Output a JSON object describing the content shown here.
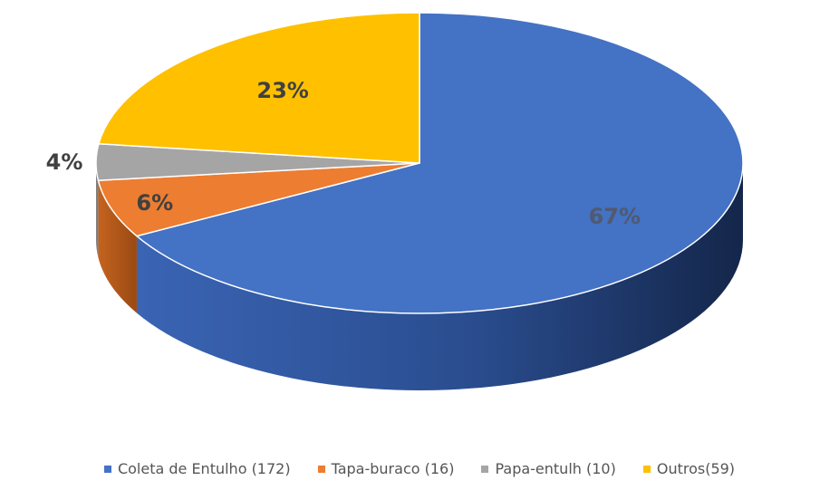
{
  "chart_data": {
    "type": "pie",
    "title": "",
    "series": [
      {
        "values": [
          172,
          16,
          10,
          59
        ],
        "labels": [
          "Coleta de Entulho (172)",
          "Tapa-buraco (16)",
          "Papa-entulh (10)",
          "Outros(59)"
        ]
      }
    ],
    "categories": [
      "Coleta de Entulho (172)",
      "Tapa-buraco (16)",
      "Papa-entulh (10)",
      "Outros(59)"
    ],
    "values": [
      172,
      16,
      10,
      59
    ],
    "data_labels": [
      "67%",
      "6%",
      "4%",
      "23%"
    ],
    "colors": [
      "#4472C4",
      "#ED7D31",
      "#A5A5A5",
      "#FFC000"
    ],
    "legend_position": "bottom",
    "style": "3d-pie"
  }
}
